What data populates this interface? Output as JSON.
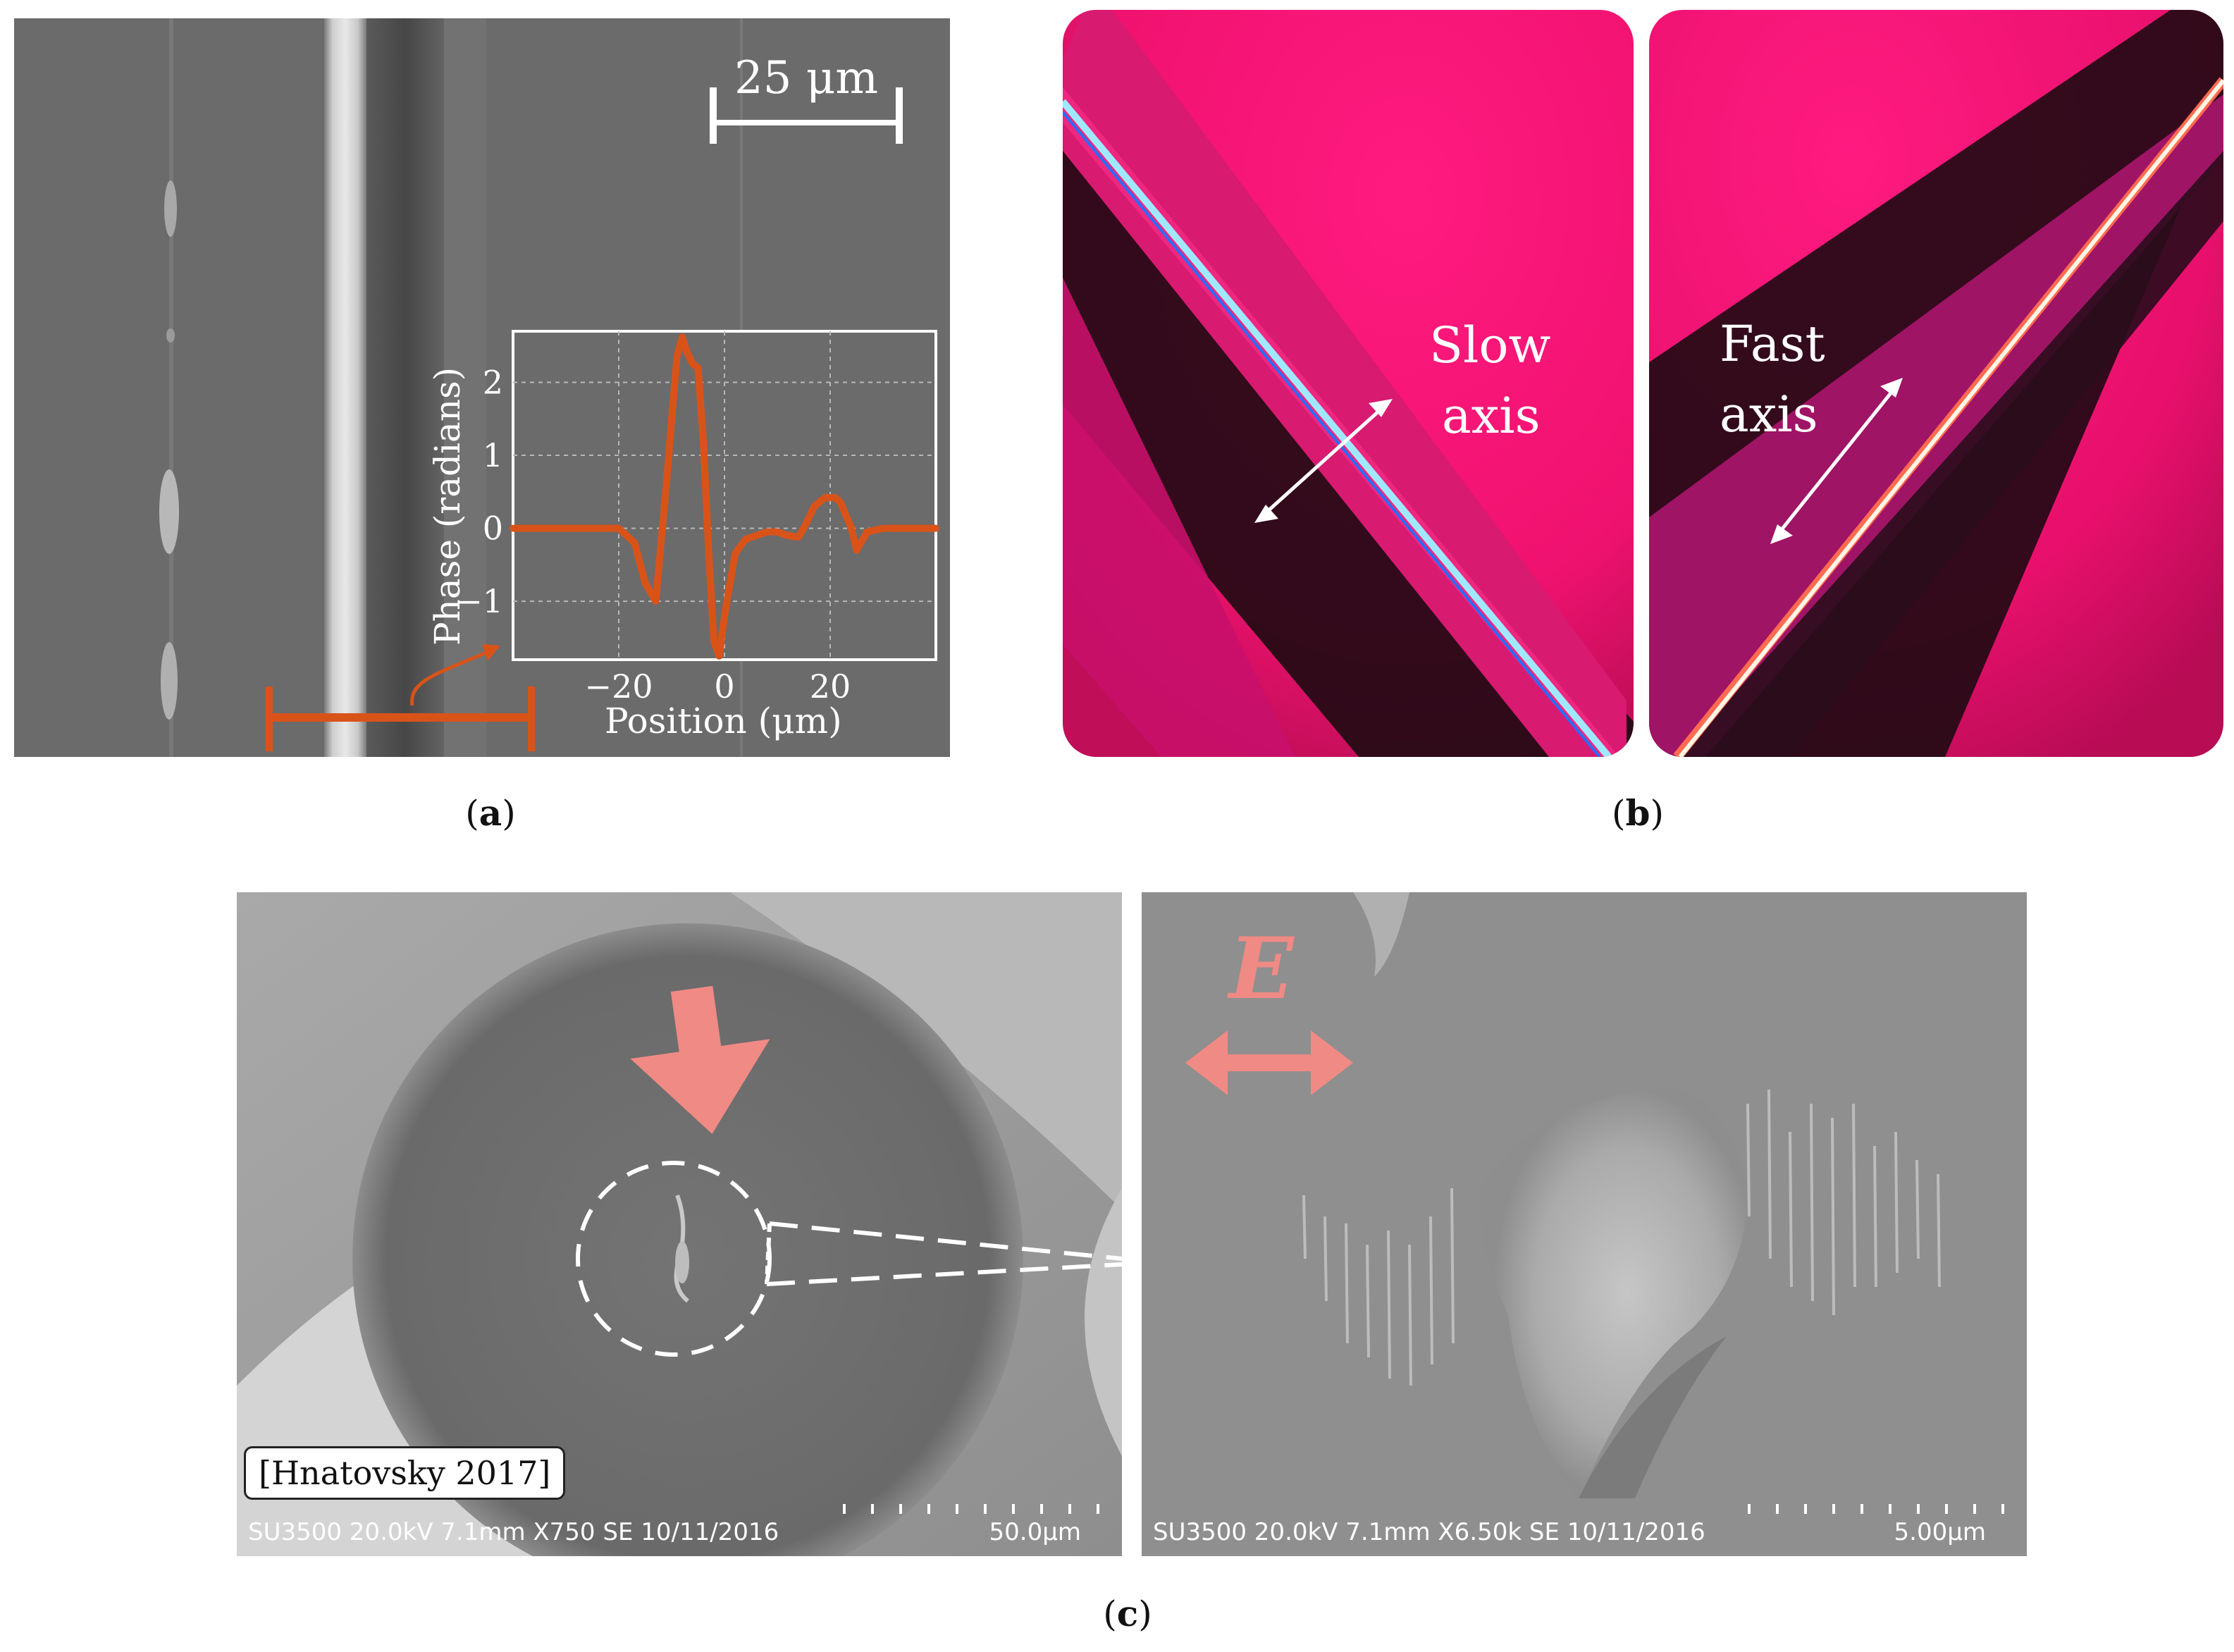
{
  "panel_a": {
    "scale_label": "25 μm",
    "inset_chart": {
      "chart_data": {
        "type": "line",
        "xlabel": "Position (μm)",
        "ylabel": "Phase (radians)",
        "xlim": [
          -40,
          40
        ],
        "ylim": [
          -1.8,
          2.7
        ],
        "x_ticks": [
          -20,
          0,
          20
        ],
        "x_tick_labels": [
          "−20",
          "0",
          "20"
        ],
        "y_ticks": [
          -1,
          0,
          1,
          2
        ],
        "y_tick_labels": [
          "−1",
          "0",
          "1",
          "2"
        ],
        "grid": true,
        "series": [
          {
            "color": "#d95319",
            "x": [
              -40,
              -30,
              -20,
              -17,
              -15,
              -13,
              -11,
              -9,
              -8,
              -7,
              -6,
              -5,
              -4,
              -3,
              -2,
              -1,
              0,
              2,
              4,
              6,
              8,
              10,
              12,
              14,
              15,
              17,
              19,
              21,
              22,
              24,
              25,
              27,
              30,
              35,
              40
            ],
            "y": [
              0,
              0,
              0,
              -0.2,
              -0.75,
              -1.0,
              0.6,
              2.35,
              2.62,
              2.4,
              2.25,
              2.2,
              1.2,
              -0.3,
              -1.55,
              -1.75,
              -1.2,
              -0.35,
              -0.15,
              -0.1,
              -0.05,
              -0.05,
              -0.1,
              -0.12,
              0.0,
              0.3,
              0.42,
              0.42,
              0.35,
              0.0,
              -0.3,
              -0.05,
              0.0,
              0.0,
              0.0
            ]
          }
        ]
      }
    }
  },
  "panel_b": {
    "left_label_line1": "Slow",
    "left_label_line2": "axis",
    "right_label_line1": "Fast",
    "right_label_line2": "axis"
  },
  "panel_c": {
    "left_footer": "SU3500 20.0kV 7.1mm X750 SE 10/11/2016",
    "left_scale": "50.0μm",
    "right_footer": "SU3500 20.0kV 7.1mm X6.50k SE 10/11/2016",
    "right_scale": "5.00μm",
    "citation": "[Hnatovsky 2017]",
    "field_label": "E"
  },
  "captions": {
    "a": "a",
    "b": "b",
    "c": "c"
  },
  "colors": {
    "accent_orange": "#d95319",
    "pink_marker": "#f08a84",
    "birefringence_magenta": "#ff1a80"
  }
}
